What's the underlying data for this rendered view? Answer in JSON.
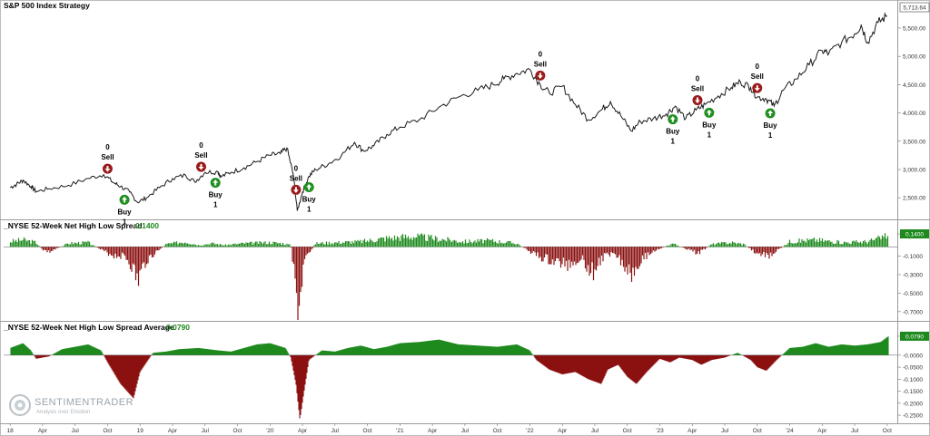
{
  "chart_data": [
    {
      "type": "line",
      "title": "S&P 500 Index  Strategy",
      "last_value_label": "5,713.64",
      "y_ticks": [
        2500,
        3000,
        3500,
        4000,
        4500,
        5000,
        5500
      ],
      "y_tick_labels": [
        "2,500.00",
        "3,000.00",
        "3,500.00",
        "4,000.00",
        "4,500.00",
        "5,000.00",
        "5,500.00"
      ],
      "ylim": [
        2150,
        5900
      ],
      "x": [
        2018.0,
        2018.05,
        2018.1,
        2018.16,
        2018.2,
        2018.3,
        2018.45,
        2018.6,
        2018.72,
        2018.8,
        2018.85,
        2018.92,
        2018.98,
        2019.05,
        2019.15,
        2019.25,
        2019.35,
        2019.42,
        2019.5,
        2019.6,
        2019.62,
        2019.7,
        2019.8,
        2019.9,
        2020.0,
        2020.08,
        2020.13,
        2020.18,
        2020.21,
        2020.25,
        2020.3,
        2020.35,
        2020.45,
        2020.55,
        2020.65,
        2020.72,
        2020.8,
        2020.9,
        2021.0,
        2021.15,
        2021.3,
        2021.45,
        2021.6,
        2021.72,
        2021.8,
        2021.9,
        2022.0,
        2022.08,
        2022.15,
        2022.25,
        2022.35,
        2022.45,
        2022.55,
        2022.62,
        2022.7,
        2022.78,
        2022.85,
        2022.95,
        2023.05,
        2023.12,
        2023.2,
        2023.28,
        2023.35,
        2023.45,
        2023.55,
        2023.62,
        2023.7,
        2023.75,
        2023.82,
        2023.88,
        2023.95,
        2024.05,
        2024.15,
        2024.25,
        2024.3,
        2024.4,
        2024.5,
        2024.55,
        2024.6,
        2024.68,
        2024.75
      ],
      "y": [
        2680,
        2740,
        2810,
        2700,
        2610,
        2660,
        2720,
        2840,
        2910,
        2760,
        2700,
        2600,
        2420,
        2500,
        2680,
        2840,
        2900,
        2780,
        2950,
        2960,
        2870,
        2950,
        3030,
        3140,
        3250,
        3280,
        3380,
        2900,
        2270,
        2600,
        2880,
        3000,
        3100,
        3250,
        3480,
        3330,
        3420,
        3620,
        3750,
        3880,
        4100,
        4280,
        4400,
        4500,
        4600,
        4700,
        4770,
        4500,
        4350,
        4470,
        4150,
        3880,
        4050,
        4200,
        3950,
        3680,
        3850,
        3900,
        3980,
        4120,
        3900,
        4050,
        4150,
        4300,
        4450,
        4550,
        4450,
        4280,
        4250,
        4120,
        4400,
        4600,
        4850,
        5100,
        5050,
        5250,
        5400,
        5550,
        5250,
        5600,
        5713.64
      ],
      "signals": [
        {
          "x": 2018.75,
          "type": "sell",
          "label": "Sell",
          "value": "0"
        },
        {
          "x": 2018.88,
          "type": "buy",
          "label": "Buy",
          "value": "1"
        },
        {
          "x": 2019.47,
          "type": "sell",
          "label": "Sell",
          "value": "0"
        },
        {
          "x": 2019.58,
          "type": "buy",
          "label": "Buy",
          "value": "1"
        },
        {
          "x": 2020.2,
          "type": "sell",
          "label": "Sell",
          "value": "0"
        },
        {
          "x": 2020.3,
          "type": "buy",
          "label": "Buy",
          "value": "1"
        },
        {
          "x": 2022.08,
          "type": "sell",
          "label": "Sell",
          "value": "0"
        },
        {
          "x": 2023.1,
          "type": "buy",
          "label": "Buy",
          "value": "1"
        },
        {
          "x": 2023.29,
          "type": "sell",
          "label": "Sell",
          "value": "0"
        },
        {
          "x": 2023.38,
          "type": "buy",
          "label": "Buy",
          "value": "1"
        },
        {
          "x": 2023.75,
          "type": "sell",
          "label": "Sell",
          "value": "0"
        },
        {
          "x": 2023.85,
          "type": "buy",
          "label": "Buy",
          "value": "1"
        }
      ]
    },
    {
      "type": "bar",
      "title": "_NYSE 52-Week Net High Low Spread",
      "current_value": "0.1400",
      "y_ticks": [
        0.14,
        -0.1,
        -0.3,
        -0.5,
        -0.7
      ],
      "y_tick_labels": [
        "0.1400",
        "-0.1000",
        "-0.3000",
        "-0.5000",
        "-0.7000"
      ],
      "ylim": [
        -0.78,
        0.16
      ],
      "x": [
        2018.0,
        2018.1,
        2018.2,
        2018.25,
        2018.3,
        2018.45,
        2018.6,
        2018.72,
        2018.8,
        2018.88,
        2018.93,
        2018.98,
        2019.05,
        2019.2,
        2019.35,
        2019.45,
        2019.55,
        2019.65,
        2019.8,
        2020.0,
        2020.1,
        2020.16,
        2020.2,
        2020.22,
        2020.26,
        2020.35,
        2020.5,
        2020.7,
        2020.9,
        2021.1,
        2021.3,
        2021.5,
        2021.7,
        2021.9,
        2022.0,
        2022.08,
        2022.2,
        2022.3,
        2022.4,
        2022.48,
        2022.55,
        2022.65,
        2022.72,
        2022.78,
        2022.85,
        2022.95,
        2023.1,
        2023.25,
        2023.3,
        2023.4,
        2023.55,
        2023.65,
        2023.75,
        2023.85,
        2023.9,
        2024.0,
        2024.2,
        2024.4,
        2024.6,
        2024.7,
        2024.76
      ],
      "values": [
        0.06,
        0.08,
        0.05,
        -0.03,
        -0.06,
        0.04,
        0.05,
        -0.05,
        -0.1,
        -0.1,
        -0.2,
        -0.4,
        -0.15,
        0.03,
        0.06,
        0.02,
        0.04,
        0.02,
        0.04,
        0.05,
        0.04,
        0.02,
        -0.55,
        -0.75,
        -0.2,
        0.04,
        0.05,
        0.06,
        0.1,
        0.12,
        0.09,
        0.06,
        0.07,
        0.04,
        -0.05,
        -0.12,
        -0.18,
        -0.2,
        -0.12,
        -0.3,
        -0.14,
        -0.05,
        -0.2,
        -0.3,
        -0.15,
        -0.05,
        0.04,
        -0.05,
        -0.07,
        0.03,
        0.05,
        0.03,
        -0.08,
        -0.1,
        -0.05,
        0.06,
        0.08,
        0.05,
        0.06,
        0.1,
        0.14
      ]
    },
    {
      "type": "area",
      "title": "_NYSE 52-Week Net High Low Spread Average",
      "current_value": "0.0790",
      "y_ticks": [
        0.079,
        0.0,
        -0.05,
        -0.1,
        -0.15,
        -0.2,
        -0.25
      ],
      "y_tick_labels": [
        "0.0790",
        "-0.0000",
        "-0.0500",
        "-0.1000",
        "-0.1500",
        "-0.2000",
        "-0.2500"
      ],
      "ylim": [
        -0.28,
        0.09
      ],
      "x": [
        2018.0,
        2018.1,
        2018.16,
        2018.2,
        2018.3,
        2018.4,
        2018.5,
        2018.6,
        2018.7,
        2018.75,
        2018.85,
        2018.95,
        2019.0,
        2019.1,
        2019.2,
        2019.3,
        2019.45,
        2019.6,
        2019.7,
        2019.8,
        2019.9,
        2020.0,
        2020.12,
        2020.16,
        2020.2,
        2020.23,
        2020.26,
        2020.3,
        2020.4,
        2020.5,
        2020.6,
        2020.7,
        2020.8,
        2020.9,
        2021.0,
        2021.15,
        2021.3,
        2021.45,
        2021.6,
        2021.75,
        2021.9,
        2022.0,
        2022.05,
        2022.15,
        2022.25,
        2022.35,
        2022.45,
        2022.55,
        2022.6,
        2022.68,
        2022.75,
        2022.82,
        2022.9,
        2023.0,
        2023.08,
        2023.15,
        2023.25,
        2023.32,
        2023.4,
        2023.5,
        2023.6,
        2023.7,
        2023.75,
        2023.82,
        2023.9,
        2024.0,
        2024.1,
        2024.2,
        2024.3,
        2024.4,
        2024.5,
        2024.6,
        2024.7,
        2024.76
      ],
      "values": [
        0.03,
        0.05,
        0.02,
        -0.015,
        -0.005,
        0.025,
        0.035,
        0.045,
        0.02,
        -0.03,
        -0.12,
        -0.18,
        -0.07,
        0.01,
        0.015,
        0.025,
        0.03,
        0.02,
        0.015,
        0.03,
        0.045,
        0.05,
        0.03,
        -0.01,
        -0.12,
        -0.27,
        -0.16,
        -0.02,
        0.02,
        0.015,
        0.03,
        0.04,
        0.025,
        0.035,
        0.05,
        0.055,
        0.065,
        0.045,
        0.04,
        0.035,
        0.045,
        0.02,
        -0.02,
        -0.06,
        -0.08,
        -0.07,
        -0.1,
        -0.12,
        -0.06,
        -0.04,
        -0.09,
        -0.12,
        -0.07,
        -0.015,
        -0.03,
        -0.01,
        -0.02,
        -0.04,
        -0.02,
        -0.01,
        0.01,
        -0.02,
        -0.05,
        -0.065,
        -0.02,
        0.03,
        0.035,
        0.05,
        0.035,
        0.045,
        0.04,
        0.045,
        0.055,
        0.079
      ]
    }
  ],
  "x_axis": {
    "ticks": [
      2018.0,
      2018.25,
      2018.5,
      2018.75,
      2019.0,
      2019.25,
      2019.5,
      2019.75,
      2020.0,
      2020.25,
      2020.5,
      2020.75,
      2021.0,
      2021.25,
      2021.5,
      2021.75,
      2022.0,
      2022.25,
      2022.5,
      2022.75,
      2023.0,
      2023.25,
      2023.5,
      2023.75,
      2024.0,
      2024.25,
      2024.5,
      2024.75
    ],
    "labels": [
      "18",
      "Apr",
      "Jul",
      "Oct",
      "19",
      "Apr",
      "Jul",
      "Oct",
      "'20",
      "Apr",
      "Jul",
      "Oct",
      "'21",
      "Apr",
      "Jul",
      "Oct",
      "'22",
      "Apr",
      "Jul",
      "Oct",
      "'23",
      "Apr",
      "Jul",
      "Oct",
      "'24",
      "Apr",
      "Jul",
      "Oct"
    ],
    "range": [
      2017.95,
      2024.8
    ]
  },
  "colors": {
    "price_line": "#1a1a1a",
    "positive": "#1e8a1e",
    "negative": "#8b1010",
    "buy_marker": "#1f8f1f",
    "sell_marker": "#9b1a1a",
    "grid": "#d8d8d8"
  },
  "watermark": {
    "brand": "SENTIMENTRADER",
    "tagline": "Analysis over Emotion"
  }
}
